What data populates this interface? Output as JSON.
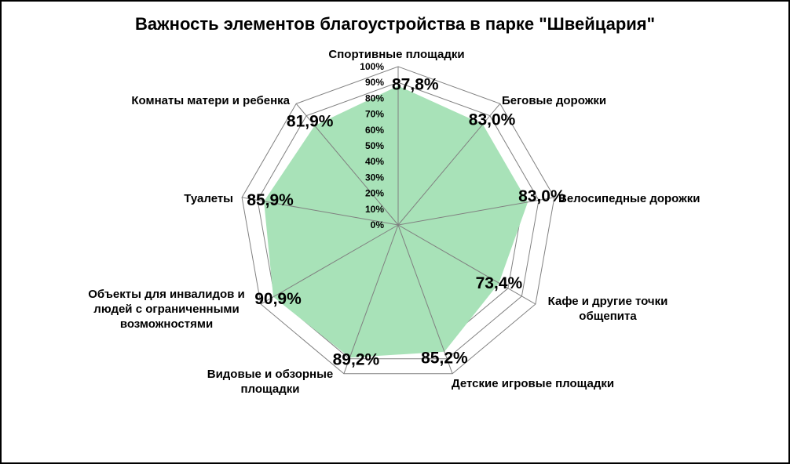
{
  "chart_data": {
    "type": "radar",
    "title": "Важность элементов благоустройства в парке \"Швейцария\"",
    "categories": [
      [
        "Спортивные площадки"
      ],
      [
        "Беговые дорожки"
      ],
      [
        "Велосипедные дорожки"
      ],
      [
        "Кафе и другие точки",
        "общепита"
      ],
      [
        "Детские игровые площадки"
      ],
      [
        "Видовые и обзорные",
        "площадки"
      ],
      [
        "Объекты для инвалидов и",
        "людей с ограниченными",
        "возможностями"
      ],
      [
        "Туалеты"
      ],
      [
        "Комнаты матери и ребенка"
      ]
    ],
    "series": [
      {
        "values": [
          87.8,
          83.0,
          83.0,
          73.4,
          85.2,
          89.2,
          90.9,
          85.9,
          81.9
        ],
        "labels": [
          "87,8%",
          "83,0%",
          "83,0%",
          "73,4%",
          "85,2%",
          "89,2%",
          "90,9%",
          "85,9%",
          "81,9%"
        ],
        "color": "#a8e2b8"
      }
    ],
    "rlim": [
      0,
      100
    ],
    "rticks": [
      "0%",
      "10%",
      "20%",
      "30%",
      "40%",
      "50%",
      "60%",
      "70%",
      "80%",
      "90%",
      "100%"
    ],
    "grid": true,
    "legend": "none",
    "grid_color": "#808080",
    "fill_color": "#a8e2b8"
  }
}
